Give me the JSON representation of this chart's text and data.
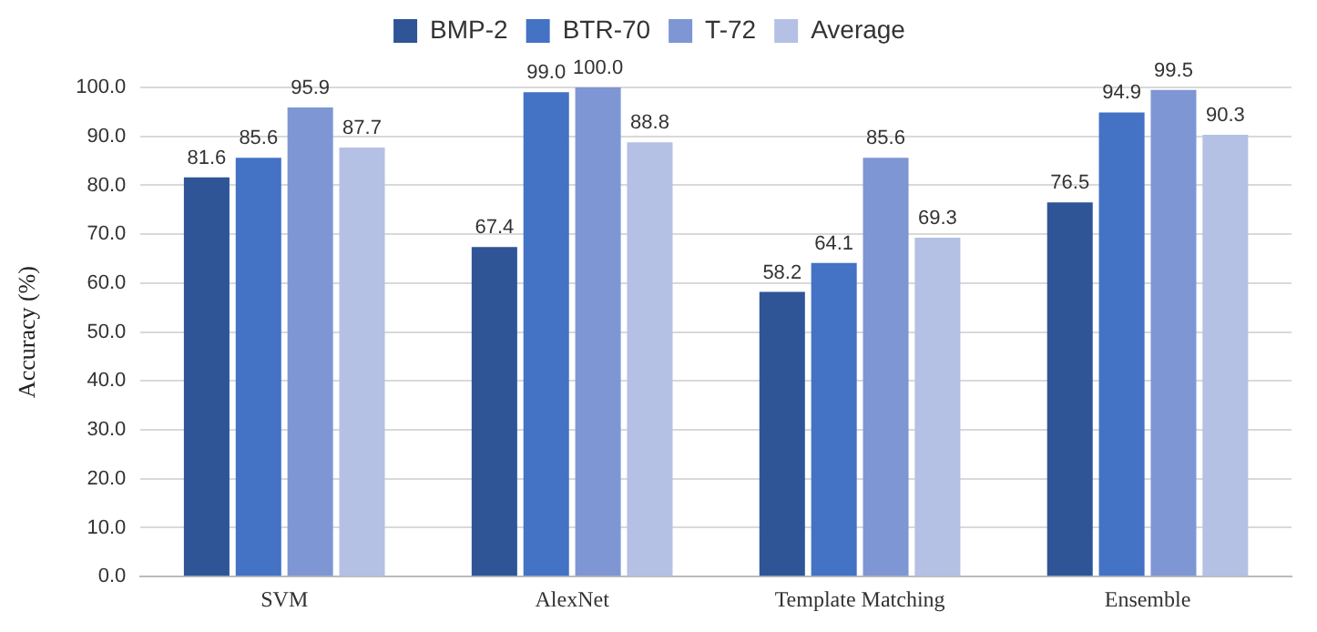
{
  "chart_data": {
    "type": "bar",
    "ylabel": "Accuracy (%)",
    "categories": [
      "SVM",
      "AlexNet",
      "Template Matching",
      "Ensemble"
    ],
    "series": [
      {
        "name": "BMP-2",
        "color": "#2f5597",
        "values": [
          81.6,
          67.4,
          58.2,
          76.5
        ],
        "value_labels": [
          "81.6",
          "67.4",
          "58.2",
          "76.5"
        ]
      },
      {
        "name": "BTR-70",
        "color": "#4472c4",
        "values": [
          85.6,
          99.0,
          64.1,
          94.9
        ],
        "value_labels": [
          "85.6",
          "99.0",
          "64.1",
          "94.9"
        ]
      },
      {
        "name": "T-72",
        "color": "#7f96d4",
        "values": [
          95.9,
          100.0,
          85.6,
          99.5
        ],
        "value_labels": [
          "95.9",
          "100.0",
          "85.6",
          "99.5"
        ]
      },
      {
        "name": "Average",
        "color": "#b4c1e4",
        "values": [
          87.7,
          88.8,
          69.3,
          90.3
        ],
        "value_labels": [
          "87.7",
          "88.8",
          "69.3",
          "90.3"
        ]
      }
    ],
    "ylim": [
      0,
      100
    ],
    "yticks": [
      {
        "value": 0,
        "label": "0.0"
      },
      {
        "value": 10,
        "label": "10.0"
      },
      {
        "value": 20,
        "label": "20.0"
      },
      {
        "value": 30,
        "label": "30.0"
      },
      {
        "value": 40,
        "label": "40.0"
      },
      {
        "value": 50,
        "label": "50.0"
      },
      {
        "value": 60,
        "label": "60.0"
      },
      {
        "value": 70,
        "label": "70.0"
      },
      {
        "value": 80,
        "label": "80.0"
      },
      {
        "value": 90,
        "label": "90.0"
      },
      {
        "value": 100,
        "label": "100.0"
      }
    ],
    "grid": "y",
    "legend": "top"
  }
}
